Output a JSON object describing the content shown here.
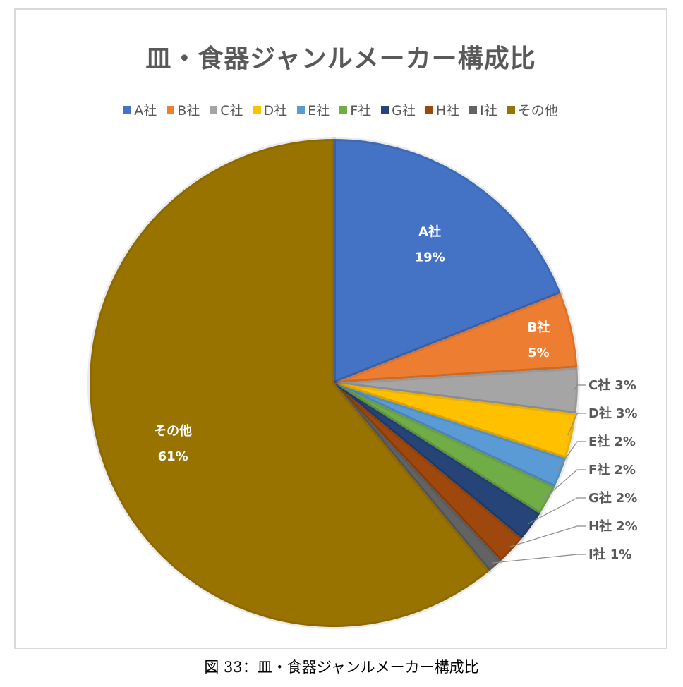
{
  "chart_data": {
    "type": "pie",
    "title": "皿・食器ジャンルメーカー構成比",
    "legend_position": "top",
    "start_angle": "top, clockwise",
    "categories": [
      "A社",
      "B社",
      "C社",
      "D社",
      "E社",
      "F社",
      "G社",
      "H社",
      "I社",
      "その他"
    ],
    "values": [
      19,
      5,
      3,
      3,
      2,
      2,
      2,
      2,
      1,
      61
    ],
    "data_labels": [
      "19%",
      "5%",
      "3%",
      "3%",
      "2%",
      "2%",
      "2%",
      "2%",
      "1%",
      "61%"
    ],
    "colors": [
      "#4472c4",
      "#ed7d31",
      "#a5a5a5",
      "#ffc000",
      "#5b9bd5",
      "#70ad47",
      "#264478",
      "#9e480e",
      "#636363",
      "#997300"
    ]
  },
  "caption": "図 33：皿・食器ジャンルメーカー構成比"
}
